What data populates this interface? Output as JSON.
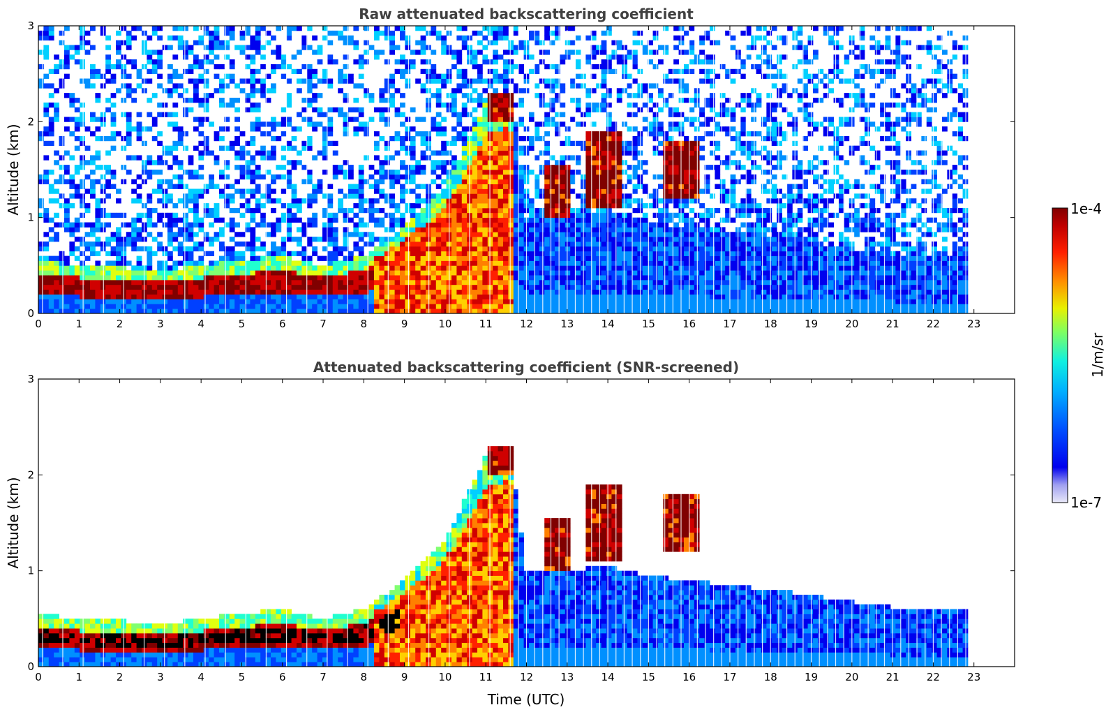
{
  "chart_data": [
    {
      "type": "heatmap",
      "title": "Raw attenuated backscattering coefficient",
      "xlabel": "",
      "ylabel": "Altitude (km)",
      "xlim": [
        0,
        24
      ],
      "ylim": [
        0,
        3
      ],
      "x_ticks": [
        "0",
        "1",
        "2",
        "3",
        "4",
        "5",
        "6",
        "7",
        "8",
        "9",
        "10",
        "11",
        "12",
        "13",
        "14",
        "15",
        "16",
        "17",
        "18",
        "19",
        "20",
        "21",
        "22",
        "23"
      ],
      "y_ticks": [
        "0",
        "1",
        "2",
        "3"
      ],
      "data_end_time_utc": 22.85,
      "boundary_layer_top_km": [
        [
          0,
          0.55
        ],
        [
          1,
          0.5
        ],
        [
          2,
          0.48
        ],
        [
          3,
          0.45
        ],
        [
          4,
          0.5
        ],
        [
          5,
          0.55
        ],
        [
          6,
          0.6
        ],
        [
          7,
          0.5
        ],
        [
          8,
          0.6
        ],
        [
          9,
          0.9
        ],
        [
          10,
          1.3
        ],
        [
          11,
          2.2
        ],
        [
          11.6,
          2.3
        ],
        [
          12,
          1.0
        ],
        [
          13,
          1.0
        ],
        [
          14,
          1.05
        ],
        [
          15,
          0.95
        ],
        [
          16,
          0.9
        ],
        [
          17,
          0.85
        ],
        [
          18,
          0.8
        ],
        [
          19,
          0.75
        ],
        [
          20,
          0.68
        ],
        [
          21,
          0.62
        ],
        [
          22,
          0.6
        ],
        [
          22.85,
          0.6
        ]
      ],
      "cloud_layers": [
        {
          "time_start": 11.0,
          "time_end": 11.65,
          "base_km": 2.0,
          "top_km": 2.3
        },
        {
          "time_start": 12.4,
          "time_end": 13.1,
          "base_km": 1.0,
          "top_km": 1.55
        },
        {
          "time_start": 13.5,
          "time_end": 14.4,
          "base_km": 1.1,
          "top_km": 1.9
        },
        {
          "time_start": 15.3,
          "time_end": 16.2,
          "base_km": 1.2,
          "top_km": 1.8
        }
      ]
    },
    {
      "type": "heatmap",
      "title": "Attenuated backscattering coefficient (SNR-screened)",
      "xlabel": "Time (UTC)",
      "ylabel": "Altitude (km)",
      "xlim": [
        0,
        24
      ],
      "ylim": [
        0,
        3
      ],
      "x_ticks": [
        "0",
        "1",
        "2",
        "3",
        "4",
        "5",
        "6",
        "7",
        "8",
        "9",
        "10",
        "11",
        "12",
        "13",
        "14",
        "15",
        "16",
        "17",
        "18",
        "19",
        "20",
        "21",
        "22",
        "23"
      ],
      "y_ticks": [
        "0",
        "1",
        "2",
        "3"
      ],
      "data_end_time_utc": 22.85
    }
  ],
  "colorbar": {
    "label": "1/m/sr",
    "max_label": "1e-4",
    "min_label": "1e-7",
    "colors": [
      "#e8e8f8",
      "#b8b8f0",
      "#8080f0",
      "#0000ee",
      "#0040ff",
      "#0090ff",
      "#00d0ff",
      "#20ffd0",
      "#80ff70",
      "#e0ff10",
      "#ffd000",
      "#ff8000",
      "#ff2000",
      "#d00000",
      "#800000"
    ]
  }
}
